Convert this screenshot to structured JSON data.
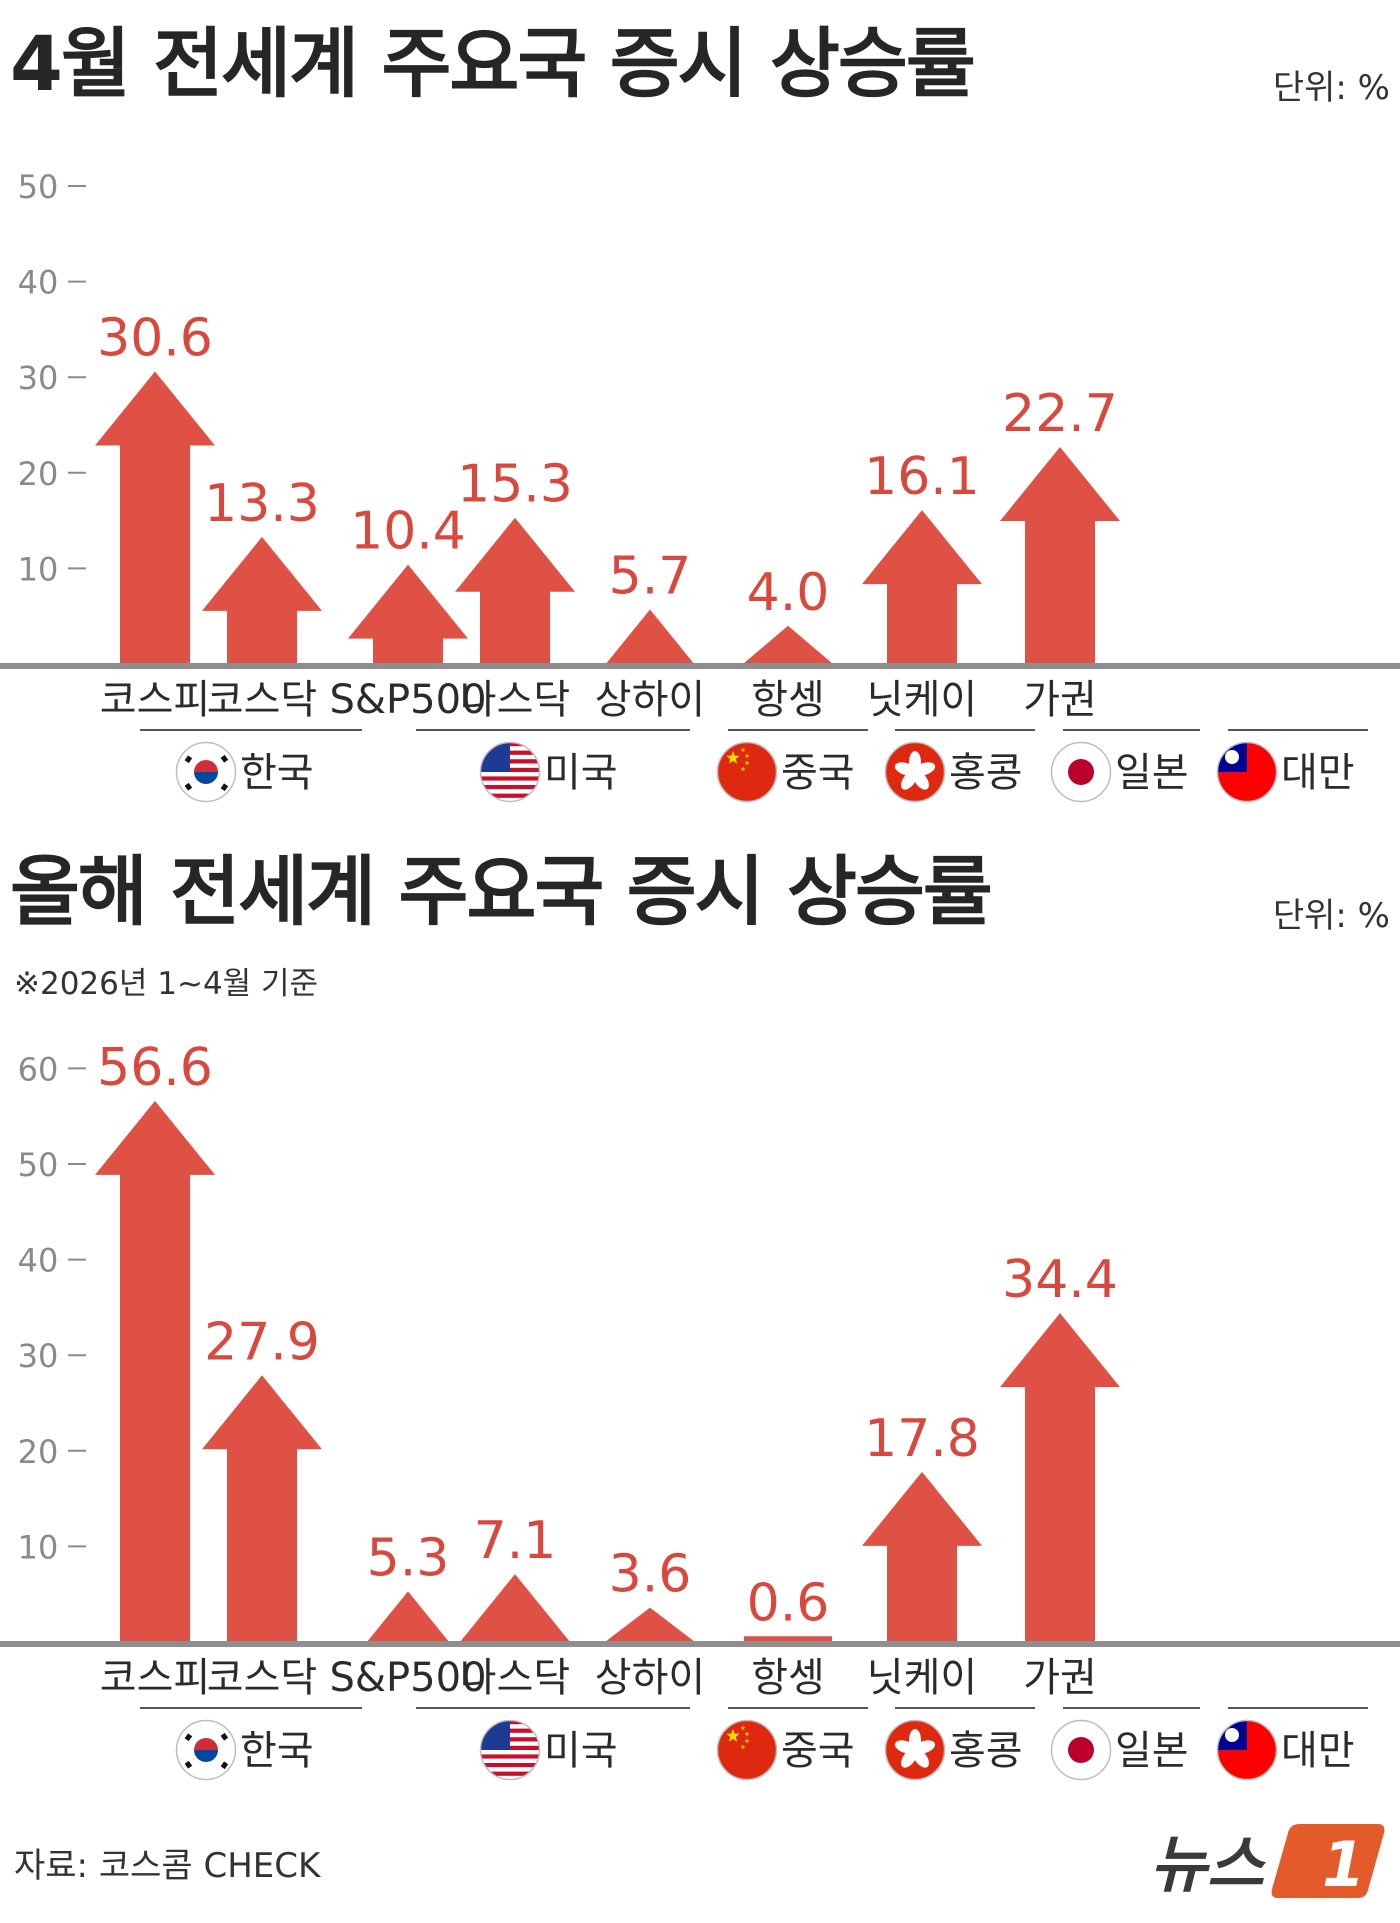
{
  "footer": {
    "source": "자료: 코스콤 CHECK",
    "logo_text": "뉴스",
    "logo_mark": "1"
  },
  "colors": {
    "bar": "#e05145",
    "value": "#d9483d",
    "axis": "#8a8a8a",
    "baseline": "#8e8e8e",
    "text": "#2b2b2b",
    "logo": "#e35a2b"
  },
  "flags": [
    {
      "country": "한국",
      "icon": "south-korea-flag-icon"
    },
    {
      "country": "미국",
      "icon": "us-flag-icon"
    },
    {
      "country": "중국",
      "icon": "china-flag-icon"
    },
    {
      "country": "홍콩",
      "icon": "hong-kong-flag-icon"
    },
    {
      "country": "일본",
      "icon": "japan-flag-icon"
    },
    {
      "country": "대만",
      "icon": "taiwan-flag-icon"
    }
  ],
  "chart_data": [
    {
      "type": "bar",
      "title": "4월 전세계 주요국 증시 상승률",
      "unit": "단위: %",
      "note": "",
      "ylim": [
        0,
        50
      ],
      "yticks": [
        10,
        20,
        30,
        40,
        50
      ],
      "categories": [
        "코스피",
        "코스닥",
        "S&P500",
        "나스닥",
        "상하이",
        "항셍",
        "닛케이",
        "가권"
      ],
      "values": [
        30.6,
        13.3,
        10.4,
        15.3,
        5.7,
        4.0,
        16.1,
        22.7
      ],
      "labels": [
        "30.6",
        "13.3",
        "10.4",
        "15.3",
        "5.7",
        "4.0",
        "16.1",
        "22.7"
      ],
      "groups": [
        {
          "name": "한국",
          "members": [
            "코스피",
            "코스닥"
          ]
        },
        {
          "name": "미국",
          "members": [
            "S&P500",
            "나스닥"
          ]
        },
        {
          "name": "중국",
          "members": [
            "상하이"
          ]
        },
        {
          "name": "홍콩",
          "members": [
            "항셍"
          ]
        },
        {
          "name": "일본",
          "members": [
            "닛케이"
          ]
        },
        {
          "name": "대만",
          "members": [
            "가권"
          ]
        }
      ]
    },
    {
      "type": "bar",
      "title": "올해 전세계 주요국 증시 상승률",
      "unit": "단위: %",
      "note": "※2026년 1~4월 기준",
      "ylim": [
        0,
        60
      ],
      "yticks": [
        10,
        20,
        30,
        40,
        50,
        60
      ],
      "categories": [
        "코스피",
        "코스닥",
        "S&P500",
        "나스닥",
        "상하이",
        "항셍",
        "닛케이",
        "가권"
      ],
      "values": [
        56.6,
        27.9,
        5.3,
        7.1,
        3.6,
        0.6,
        17.8,
        34.4
      ],
      "labels": [
        "56.6",
        "27.9",
        "5.3",
        "7.1",
        "3.6",
        "0.6",
        "17.8",
        "34.4"
      ],
      "groups": [
        {
          "name": "한국",
          "members": [
            "코스피",
            "코스닥"
          ]
        },
        {
          "name": "미국",
          "members": [
            "S&P500",
            "나스닥"
          ]
        },
        {
          "name": "중국",
          "members": [
            "상하이"
          ]
        },
        {
          "name": "홍콩",
          "members": [
            "항셍"
          ]
        },
        {
          "name": "일본",
          "members": [
            "닛케이"
          ]
        },
        {
          "name": "대만",
          "members": [
            "가권"
          ]
        }
      ]
    }
  ]
}
